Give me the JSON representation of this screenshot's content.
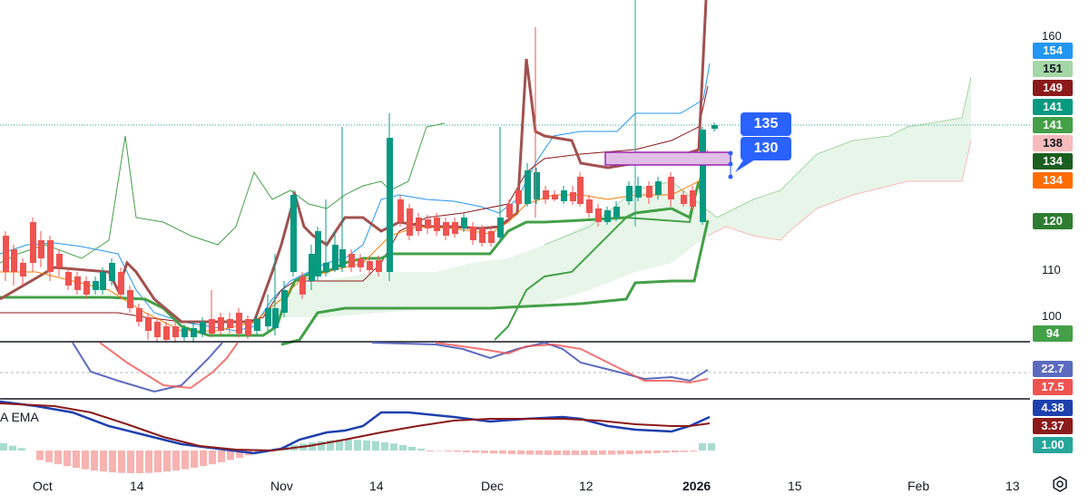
{
  "price_axis": {
    "ticks": [
      "160",
      "110",
      "100"
    ],
    "badges": [
      {
        "label": "154",
        "bg": "#2196f3",
        "fg": "#ffffff"
      },
      {
        "label": "151",
        "bg": "#a5d6a7",
        "fg": "#131722"
      },
      {
        "label": "149",
        "bg": "#8b1a1a",
        "fg": "#ffffff"
      },
      {
        "label": "141",
        "bg": "#089981",
        "fg": "#ffffff"
      },
      {
        "label": "141",
        "bg": "#43a047",
        "fg": "#ffffff"
      },
      {
        "label": "138",
        "bg": "#f8bbbb",
        "fg": "#131722"
      },
      {
        "label": "134",
        "bg": "#1b5e20",
        "fg": "#ffffff"
      },
      {
        "label": "134",
        "bg": "#ff6d00",
        "fg": "#ffffff"
      },
      {
        "label": "120",
        "bg": "#2e7d32",
        "fg": "#ffffff"
      },
      {
        "label": "94",
        "bg": "#43a047",
        "fg": "#ffffff"
      },
      {
        "label": "22.7",
        "bg": "#5c6bc0",
        "fg": "#ffffff"
      },
      {
        "label": "17.5",
        "bg": "#ef5350",
        "fg": "#ffffff"
      },
      {
        "label": "4.38",
        "bg": "#1e40af",
        "fg": "#ffffff"
      },
      {
        "label": "3.37",
        "bg": "#8b1a1a",
        "fg": "#ffffff"
      },
      {
        "label": "1.00",
        "bg": "#26a69a",
        "fg": "#ffffff"
      }
    ]
  },
  "time_axis": {
    "labels": [
      "Oct",
      "14",
      "Nov",
      "14",
      "Dec",
      "12",
      "2026",
      "15",
      "Feb",
      "13"
    ]
  },
  "callouts": {
    "upper": "135",
    "lower": "130"
  },
  "macd_pane": {
    "label": "A EMA"
  },
  "colors": {
    "up_candle": "#26a69a",
    "up_candle_strong": "#089981",
    "down_candle": "#ef5350",
    "kijun": "#43a047",
    "tenkan_dark": "#8b1a1a",
    "cloud_fill": "#e8f5e9",
    "accent": "#2962ff"
  }
}
